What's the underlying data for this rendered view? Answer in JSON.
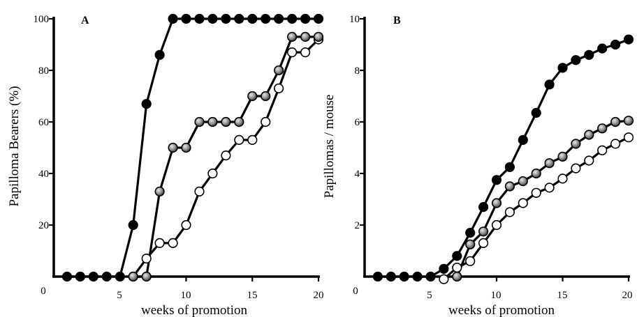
{
  "chart_data": [
    {
      "type": "line",
      "panel": "A",
      "xlabel": "weeks of promotion",
      "ylabel": "Papilloma Bearers (%)",
      "xlim": [
        0,
        20
      ],
      "ylim": [
        0,
        100
      ],
      "xticks": [
        "0",
        "5",
        "10",
        "15",
        "20"
      ],
      "yticks": [
        "20",
        "40",
        "60",
        "80",
        "100"
      ],
      "grid": false,
      "legend": "none",
      "series": [
        {
          "marker": "filled-black",
          "color": "#000000",
          "x": [
            1,
            2,
            3,
            4,
            5,
            6,
            7,
            8,
            9,
            10,
            11,
            12,
            13,
            14,
            15,
            16,
            17,
            18,
            19,
            20
          ],
          "y": [
            0,
            0,
            0,
            0,
            0,
            20,
            67,
            86,
            100,
            100,
            100,
            100,
            100,
            100,
            100,
            100,
            100,
            100,
            100,
            100
          ]
        },
        {
          "marker": "filled-gray",
          "color": "#8a8a8a",
          "x": [
            6,
            7,
            8,
            9,
            10,
            11,
            12,
            13,
            14,
            15,
            16,
            17,
            18,
            19,
            20
          ],
          "y": [
            0,
            0,
            33,
            50,
            50,
            60,
            60,
            60,
            60,
            70,
            70,
            80,
            93,
            93,
            93
          ]
        },
        {
          "marker": "open-white",
          "color": "#ffffff",
          "x": [
            6,
            7,
            8,
            9,
            10,
            11,
            12,
            13,
            14,
            15,
            16,
            17,
            18,
            19,
            20
          ],
          "y": [
            0,
            7,
            13,
            13,
            20,
            33,
            40,
            47,
            53,
            53,
            60,
            73,
            87,
            87,
            92
          ]
        }
      ]
    },
    {
      "type": "line",
      "panel": "B",
      "xlabel": "weeks of promotion",
      "ylabel": "Papillomas / mouse",
      "xlim": [
        0,
        20
      ],
      "ylim": [
        0,
        10
      ],
      "xticks": [
        "0",
        "5",
        "10",
        "15",
        "20"
      ],
      "yticks": [
        "2",
        "4",
        "6",
        "8",
        "10"
      ],
      "grid": false,
      "legend": "none",
      "series": [
        {
          "marker": "filled-black",
          "color": "#000000",
          "x": [
            1,
            2,
            3,
            4,
            5,
            6,
            7,
            8,
            9,
            10,
            11,
            12,
            13,
            14,
            15,
            16,
            17,
            18,
            19,
            20
          ],
          "y": [
            0,
            0,
            0,
            0,
            0,
            0.3,
            0.8,
            1.7,
            2.7,
            3.75,
            4.25,
            5.3,
            6.35,
            7.45,
            8.1,
            8.4,
            8.6,
            8.85,
            9.0,
            9.2
          ]
        },
        {
          "marker": "filled-gray",
          "color": "#8a8a8a",
          "x": [
            7,
            8,
            9,
            10,
            11,
            12,
            13,
            14,
            15,
            16,
            17,
            18,
            19,
            20
          ],
          "y": [
            0,
            1.25,
            1.75,
            2.85,
            3.5,
            3.7,
            4.0,
            4.4,
            4.65,
            5.15,
            5.5,
            5.75,
            6.0,
            6.05
          ]
        },
        {
          "marker": "open-white",
          "color": "#ffffff",
          "x": [
            6,
            7,
            8,
            9,
            10,
            11,
            12,
            13,
            14,
            15,
            16,
            17,
            18,
            19,
            20
          ],
          "y": [
            -0.1,
            0.35,
            0.6,
            1.3,
            2.0,
            2.5,
            2.85,
            3.25,
            3.45,
            3.8,
            4.2,
            4.5,
            4.9,
            5.15,
            5.4
          ]
        }
      ]
    }
  ]
}
